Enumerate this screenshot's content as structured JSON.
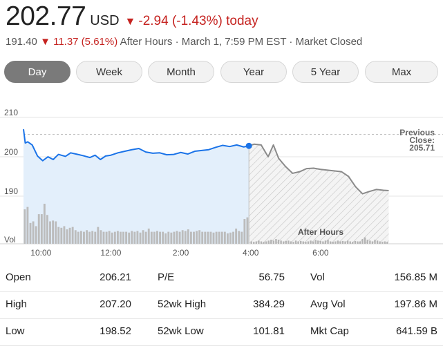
{
  "quote": {
    "price": "202.77",
    "currency": "USD",
    "change_text": "-2.94 (-1.43%) today",
    "down_arrow": "▼"
  },
  "after_hours": {
    "price": "191.40",
    "down_arrow": "▼",
    "change": "11.37 (5.61%)",
    "label": "After Hours",
    "separator": "·",
    "timestamp": "March 1, 7:59 PM EST",
    "market_status": "Market Closed"
  },
  "tabs": [
    {
      "label": "Day",
      "active": true
    },
    {
      "label": "Week",
      "active": false
    },
    {
      "label": "Month",
      "active": false
    },
    {
      "label": "Year",
      "active": false
    },
    {
      "label": "5 Year",
      "active": false
    },
    {
      "label": "Max",
      "active": false
    }
  ],
  "colors": {
    "accent": "#1a73e8",
    "negative": "#c5221f",
    "after_hours_line": "#8a8a8a",
    "volume_bar": "#c8c8c8",
    "fill": "#e3effb"
  },
  "chart_data": {
    "type": "line",
    "ylim": [
      185,
      212
    ],
    "y_ticks": [
      190,
      200,
      210
    ],
    "x_ticks": [
      {
        "label": "10:00",
        "hour": 10
      },
      {
        "label": "12:00",
        "hour": 12
      },
      {
        "label": "2:00",
        "hour": 14
      },
      {
        "label": "4:00",
        "hour": 16
      },
      {
        "label": "6:00",
        "hour": 18
      }
    ],
    "x_range": [
      9.5,
      20.0
    ],
    "previous_close": {
      "label_line1": "Previous",
      "label_line2": "Close:",
      "value": "205.71",
      "y": 205.71
    },
    "volume_label": "Vol",
    "after_hours_label": "After Hours",
    "regular_session": {
      "x": [
        9.5,
        9.55,
        9.62,
        9.75,
        9.9,
        10.05,
        10.2,
        10.35,
        10.5,
        10.7,
        10.85,
        11.0,
        11.2,
        11.4,
        11.55,
        11.7,
        11.85,
        12.0,
        12.2,
        12.4,
        12.6,
        12.8,
        13.0,
        13.2,
        13.4,
        13.6,
        13.8,
        14.0,
        14.2,
        14.4,
        14.6,
        14.8,
        15.0,
        15.2,
        15.4,
        15.6,
        15.8,
        15.95
      ],
      "y": [
        207.0,
        203.5,
        203.8,
        203.0,
        200.2,
        199.0,
        200.0,
        199.3,
        200.6,
        200.1,
        201.0,
        200.7,
        200.3,
        199.8,
        200.4,
        199.3,
        200.2,
        200.4,
        201.0,
        201.4,
        201.8,
        202.1,
        201.2,
        200.9,
        201.0,
        200.5,
        200.6,
        201.1,
        200.7,
        201.4,
        201.6,
        201.8,
        202.4,
        202.9,
        202.6,
        203.0,
        202.5,
        202.77
      ]
    },
    "after_hours_session": {
      "x": [
        15.95,
        16.1,
        16.3,
        16.5,
        16.65,
        16.8,
        17.0,
        17.2,
        17.4,
        17.6,
        17.8,
        18.0,
        18.2,
        18.4,
        18.6,
        18.8,
        19.0,
        19.2,
        19.4,
        19.6,
        19.8,
        19.95
      ],
      "y": [
        202.77,
        203.2,
        203.0,
        200.0,
        203.0,
        199.6,
        197.5,
        195.8,
        196.2,
        197.0,
        197.1,
        196.8,
        196.6,
        196.4,
        196.2,
        195.0,
        192.4,
        190.6,
        191.2,
        191.7,
        191.5,
        191.4
      ]
    },
    "volume": {
      "regular": [
        0.86,
        0.92,
        0.52,
        0.56,
        0.44,
        0.74,
        0.74,
        1.0,
        0.72,
        0.56,
        0.58,
        0.56,
        0.42,
        0.4,
        0.44,
        0.36,
        0.4,
        0.42,
        0.34,
        0.3,
        0.32,
        0.3,
        0.34,
        0.3,
        0.32,
        0.3,
        0.42,
        0.34,
        0.3,
        0.3,
        0.32,
        0.28,
        0.3,
        0.32,
        0.3,
        0.3,
        0.3,
        0.28,
        0.32,
        0.3,
        0.32,
        0.28,
        0.34,
        0.3,
        0.38,
        0.3,
        0.3,
        0.32,
        0.3,
        0.3,
        0.26,
        0.3,
        0.28,
        0.3,
        0.32,
        0.3,
        0.34,
        0.32,
        0.36,
        0.3,
        0.3,
        0.32,
        0.34,
        0.3,
        0.3,
        0.3,
        0.3,
        0.28,
        0.3,
        0.3,
        0.3,
        0.3,
        0.26,
        0.28,
        0.3,
        0.38,
        0.32,
        0.3,
        0.62,
        0.66
      ],
      "after": [
        0.06,
        0.05,
        0.06,
        0.08,
        0.06,
        0.05,
        0.06,
        0.08,
        0.1,
        0.08,
        0.12,
        0.1,
        0.08,
        0.06,
        0.07,
        0.08,
        0.06,
        0.05,
        0.08,
        0.06,
        0.07,
        0.06,
        0.05,
        0.06,
        0.08,
        0.06,
        0.1,
        0.08,
        0.07,
        0.06,
        0.08,
        0.1,
        0.06,
        0.05,
        0.06,
        0.08,
        0.06,
        0.07,
        0.06,
        0.08,
        0.06,
        0.05,
        0.07,
        0.06,
        0.06,
        0.12,
        0.16,
        0.1,
        0.08,
        0.06,
        0.1,
        0.08,
        0.06,
        0.05,
        0.06,
        0.05
      ]
    }
  },
  "stats": [
    [
      {
        "label": "Open",
        "value": "206.21"
      },
      {
        "label": "P/E",
        "value": "56.75"
      },
      {
        "label": "Vol",
        "value": "156.85 M"
      }
    ],
    [
      {
        "label": "High",
        "value": "207.20"
      },
      {
        "label": "52wk High",
        "value": "384.29"
      },
      {
        "label": "Avg Vol",
        "value": "197.86 M"
      }
    ],
    [
      {
        "label": "Low",
        "value": "198.52"
      },
      {
        "label": "52wk Low",
        "value": "101.81"
      },
      {
        "label": "Mkt Cap",
        "value": "641.59 B"
      }
    ]
  ]
}
